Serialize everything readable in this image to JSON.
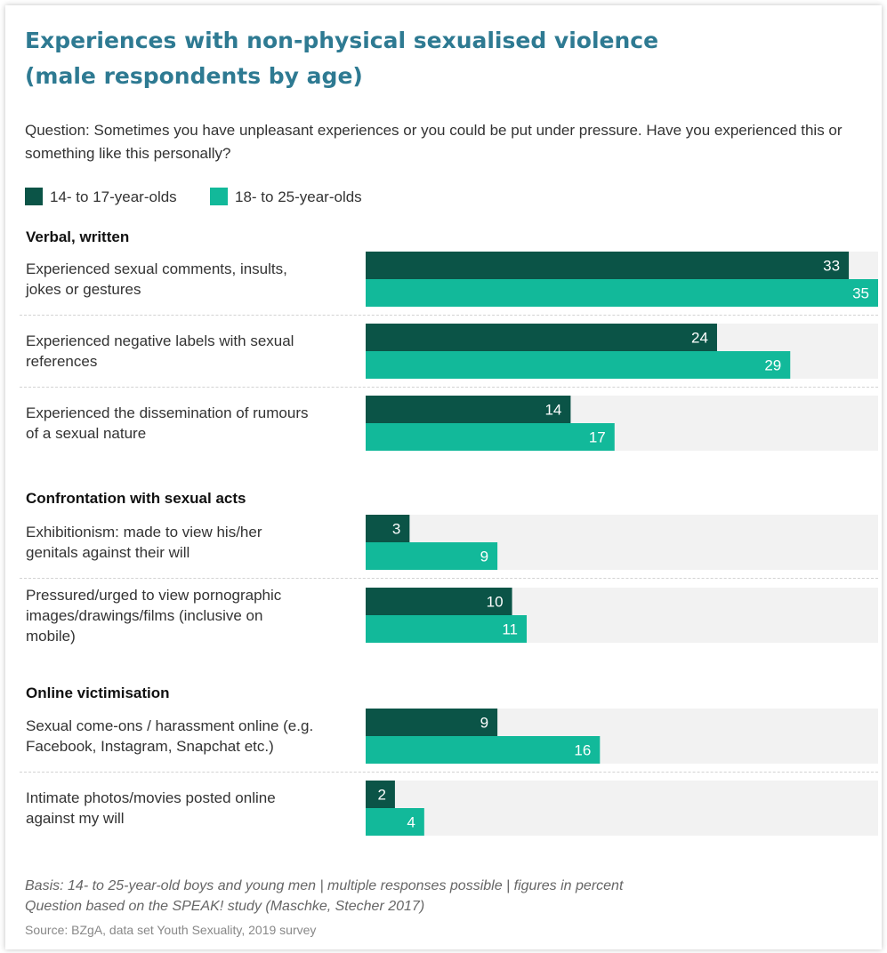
{
  "chart_data": {
    "type": "bar",
    "orientation": "horizontal",
    "title": "Experiences with non-physical sexualised violence (male respondents by age)",
    "title_lines": [
      "Experiences with non-physical sexualised violence",
      "(male respondents by age)"
    ],
    "question": "Question: Sometimes you have unpleasant experiences or you could be put under pressure. Have you experienced this or something like this personally?",
    "unit": "percent",
    "xlim": [
      0,
      35
    ],
    "legend_position": "top-left",
    "grid": false,
    "series": [
      {
        "name": "14- to 17-year-olds",
        "color": "#0b5447"
      },
      {
        "name": "18- to 25-year-olds",
        "color": "#12b99a"
      }
    ],
    "background_bar_color": "#f2f2f2",
    "groups": [
      {
        "name": "Verbal, written",
        "categories": [
          {
            "label_lines": [
              "Experienced sexual comments, insults,",
              "jokes or gestures"
            ],
            "values": [
              33,
              35
            ]
          },
          {
            "label_lines": [
              "Experienced negative labels with sexual",
              "references"
            ],
            "values": [
              24,
              29
            ]
          },
          {
            "label_lines": [
              "Experienced the dissemination of rumours",
              "of a sexual nature"
            ],
            "values": [
              14,
              17
            ]
          }
        ]
      },
      {
        "name": "Confrontation with sexual acts",
        "categories": [
          {
            "label_lines": [
              "Exhibitionism: made to view his/her",
              "genitals against their will"
            ],
            "values": [
              3,
              9
            ]
          },
          {
            "label_lines": [
              "Pressured/urged to view pornographic",
              "images/drawings/films (inclusive on",
              "mobile)"
            ],
            "values": [
              10,
              11
            ]
          }
        ]
      },
      {
        "name": "Online victimisation",
        "categories": [
          {
            "label_lines": [
              "Sexual come-ons / harassment online (e.g.",
              "Facebook, Instagram, Snapchat etc.)"
            ],
            "values": [
              9,
              16
            ]
          },
          {
            "label_lines": [
              "Intimate photos/movies posted online",
              "against my will"
            ],
            "values": [
              2,
              4
            ]
          }
        ]
      }
    ],
    "notes": [
      "Basis: 14- to 25-year-old boys and young men | multiple responses possible | figures in percent",
      "Question based on the SPEAK! study (Maschke, Stecher 2017)"
    ],
    "source": "Source: BZgA, data set Youth Sexuality, 2019 survey"
  }
}
